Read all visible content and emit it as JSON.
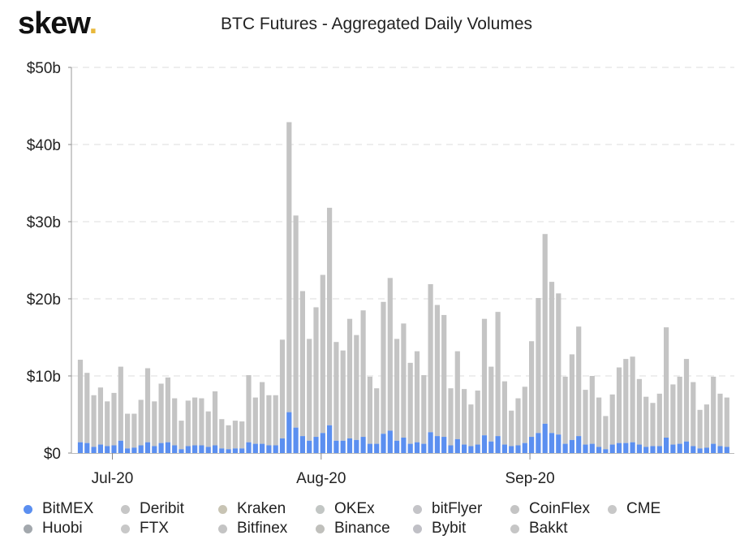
{
  "brand": {
    "logo": "skew",
    "logo_dot_color": "#e8b83c"
  },
  "chart_data": {
    "type": "bar",
    "stacked": true,
    "title": "BTC Futures - Aggregated Daily Volumes",
    "xlabel": "",
    "ylabel": "",
    "ylim": [
      0,
      50
    ],
    "y_unit": "billion USD",
    "y_ticks": [
      "$0",
      "$10b",
      "$20b",
      "$30b",
      "$40b",
      "$50b"
    ],
    "y_tick_values": [
      0,
      10,
      20,
      30,
      40,
      50
    ],
    "x_ticks": [
      {
        "label": "Jul-20",
        "date": "2020-07-01"
      },
      {
        "label": "Aug-20",
        "date": "2020-08-01"
      },
      {
        "label": "Sep-20",
        "date": "2020-09-01"
      }
    ],
    "grid": "horizontal dashed",
    "legend_placement": "bottom",
    "categories": [
      "2020-06-26",
      "2020-06-27",
      "2020-06-28",
      "2020-06-29",
      "2020-06-30",
      "2020-07-01",
      "2020-07-02",
      "2020-07-03",
      "2020-07-04",
      "2020-07-05",
      "2020-07-06",
      "2020-07-07",
      "2020-07-08",
      "2020-07-09",
      "2020-07-10",
      "2020-07-11",
      "2020-07-12",
      "2020-07-13",
      "2020-07-14",
      "2020-07-15",
      "2020-07-16",
      "2020-07-17",
      "2020-07-18",
      "2020-07-19",
      "2020-07-20",
      "2020-07-21",
      "2020-07-22",
      "2020-07-23",
      "2020-07-24",
      "2020-07-25",
      "2020-07-26",
      "2020-07-27",
      "2020-07-28",
      "2020-07-29",
      "2020-07-30",
      "2020-07-31",
      "2020-08-01",
      "2020-08-02",
      "2020-08-03",
      "2020-08-04",
      "2020-08-05",
      "2020-08-06",
      "2020-08-07",
      "2020-08-08",
      "2020-08-09",
      "2020-08-10",
      "2020-08-11",
      "2020-08-12",
      "2020-08-13",
      "2020-08-14",
      "2020-08-15",
      "2020-08-16",
      "2020-08-17",
      "2020-08-18",
      "2020-08-19",
      "2020-08-20",
      "2020-08-21",
      "2020-08-22",
      "2020-08-23",
      "2020-08-24",
      "2020-08-25",
      "2020-08-26",
      "2020-08-27",
      "2020-08-28",
      "2020-08-29",
      "2020-08-30",
      "2020-08-31",
      "2020-09-01",
      "2020-09-02",
      "2020-09-03",
      "2020-09-04",
      "2020-09-05",
      "2020-09-06",
      "2020-09-07",
      "2020-09-08",
      "2020-09-09",
      "2020-09-10",
      "2020-09-11",
      "2020-09-12",
      "2020-09-13",
      "2020-09-14",
      "2020-09-15",
      "2020-09-16",
      "2020-09-17",
      "2020-09-18",
      "2020-09-19",
      "2020-09-20",
      "2020-09-21",
      "2020-09-22",
      "2020-09-23",
      "2020-09-24",
      "2020-09-25",
      "2020-09-26",
      "2020-09-27",
      "2020-09-28",
      "2020-09-29",
      "2020-09-30"
    ],
    "total_values": [
      12.1,
      10.4,
      7.5,
      8.5,
      6.7,
      7.8,
      11.2,
      5.1,
      5.1,
      6.9,
      11.0,
      6.7,
      9.0,
      9.8,
      7.1,
      4.2,
      6.8,
      7.2,
      7.1,
      5.4,
      8.0,
      4.4,
      3.6,
      4.2,
      4.1,
      10.1,
      7.2,
      9.2,
      7.5,
      7.5,
      14.7,
      42.9,
      30.8,
      21.0,
      14.8,
      18.9,
      23.1,
      31.8,
      14.4,
      13.3,
      17.4,
      15.3,
      18.5,
      9.9,
      8.4,
      19.6,
      22.7,
      14.8,
      16.8,
      11.7,
      13.2,
      10.1,
      21.9,
      19.2,
      17.9,
      8.4,
      13.2,
      8.3,
      6.3,
      8.1,
      17.4,
      11.2,
      18.3,
      9.3,
      5.5,
      7.1,
      8.6,
      14.5,
      20.1,
      28.4,
      22.2,
      20.7,
      9.9,
      12.8,
      16.4,
      8.2,
      10.0,
      7.2,
      4.8,
      7.6,
      11.1,
      12.2,
      12.5,
      9.6,
      7.3,
      6.5,
      7.7,
      16.3,
      8.9,
      9.9,
      12.2,
      9.2,
      5.6,
      6.3,
      9.9,
      7.7,
      7.2
    ],
    "series": [
      {
        "name": "BitMEX",
        "color": "#5b8ff0",
        "values": [
          1.4,
          1.3,
          0.8,
          1.1,
          0.9,
          1.0,
          1.6,
          0.6,
          0.7,
          1.0,
          1.4,
          0.9,
          1.3,
          1.4,
          1.0,
          0.5,
          0.9,
          1.0,
          1.0,
          0.8,
          1.0,
          0.6,
          0.5,
          0.6,
          0.6,
          1.4,
          1.2,
          1.2,
          1.0,
          1.0,
          1.9,
          5.3,
          3.3,
          2.2,
          1.6,
          2.1,
          2.6,
          3.6,
          1.6,
          1.6,
          1.9,
          1.7,
          2.1,
          1.2,
          1.2,
          2.5,
          2.9,
          1.6,
          2.0,
          1.2,
          1.4,
          1.2,
          2.7,
          2.2,
          2.1,
          1.0,
          1.8,
          1.1,
          0.9,
          1.1,
          2.3,
          1.5,
          2.2,
          1.1,
          0.9,
          1.0,
          1.3,
          2.1,
          2.6,
          3.8,
          2.6,
          2.4,
          1.2,
          1.7,
          2.2,
          1.1,
          1.2,
          0.8,
          0.5,
          1.1,
          1.3,
          1.3,
          1.4,
          1.1,
          0.8,
          0.9,
          0.9,
          2.0,
          1.1,
          1.2,
          1.5,
          0.9,
          0.6,
          0.7,
          1.2,
          0.9,
          0.8
        ]
      }
    ],
    "other_exchanges_color": "#c4c4c4",
    "legend": [
      {
        "name": "BitMEX",
        "color": "#5b8ff0"
      },
      {
        "name": "Deribit",
        "color": "#c6c6c6"
      },
      {
        "name": "Kraken",
        "color": "#c8c4b4"
      },
      {
        "name": "OKEx",
        "color": "#c2c6c4"
      },
      {
        "name": "bitFlyer",
        "color": "#c4c4c8"
      },
      {
        "name": "CoinFlex",
        "color": "#c4c4c4"
      },
      {
        "name": "CME",
        "color": "#c8c8c8"
      },
      {
        "name": "Huobi",
        "color": "#a3a8ad"
      },
      {
        "name": "FTX",
        "color": "#c8c8c8"
      },
      {
        "name": "Bitfinex",
        "color": "#c4c4c4"
      },
      {
        "name": "Binance",
        "color": "#c0c0bc"
      },
      {
        "name": "Bybit",
        "color": "#c0c0c6"
      },
      {
        "name": "Bakkt",
        "color": "#c6c6c6"
      }
    ]
  }
}
